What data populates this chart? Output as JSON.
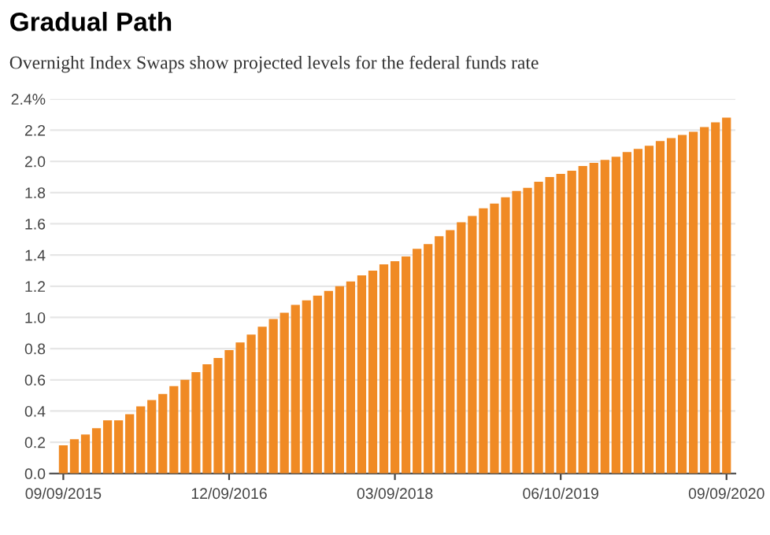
{
  "chart_data": {
    "type": "bar",
    "title": "Gradual Path",
    "subtitle": "Overnight Index Swaps show projected levels for the federal funds rate",
    "categories": [
      "09/09/2015",
      null,
      null,
      null,
      null,
      null,
      null,
      null,
      null,
      null,
      null,
      null,
      null,
      null,
      null,
      "12/09/2016",
      null,
      null,
      null,
      null,
      null,
      null,
      null,
      null,
      null,
      null,
      null,
      null,
      null,
      null,
      "03/09/2018",
      null,
      null,
      null,
      null,
      null,
      null,
      null,
      null,
      null,
      null,
      null,
      null,
      null,
      null,
      "06/10/2019",
      null,
      null,
      null,
      null,
      null,
      null,
      null,
      null,
      null,
      null,
      null,
      null,
      null,
      null,
      "09/09/2020"
    ],
    "values": [
      0.18,
      0.22,
      0.25,
      0.29,
      0.34,
      0.34,
      0.38,
      0.43,
      0.47,
      0.51,
      0.56,
      0.6,
      0.65,
      0.7,
      0.74,
      0.79,
      0.84,
      0.89,
      0.94,
      0.99,
      1.03,
      1.08,
      1.11,
      1.14,
      1.17,
      1.2,
      1.23,
      1.27,
      1.3,
      1.34,
      1.36,
      1.39,
      1.44,
      1.47,
      1.52,
      1.56,
      1.61,
      1.65,
      1.7,
      1.73,
      1.77,
      1.81,
      1.83,
      1.87,
      1.9,
      1.92,
      1.94,
      1.97,
      1.99,
      2.01,
      2.03,
      2.06,
      2.08,
      2.1,
      2.13,
      2.15,
      2.17,
      2.19,
      2.22,
      2.25,
      2.28
    ],
    "color": "#f08a24",
    "ylim": [
      0,
      2.4
    ],
    "yticks": [
      {
        "value": 0,
        "label": "0.0"
      },
      0.2,
      0.4,
      0.6,
      0.8,
      {
        "value": 1,
        "label": "1.0"
      },
      1.2,
      1.4,
      1.6,
      1.8,
      {
        "value": 2,
        "label": "2.0"
      },
      2.2,
      {
        "value": 2.4,
        "label": "2.4%"
      }
    ],
    "grid": "y"
  }
}
